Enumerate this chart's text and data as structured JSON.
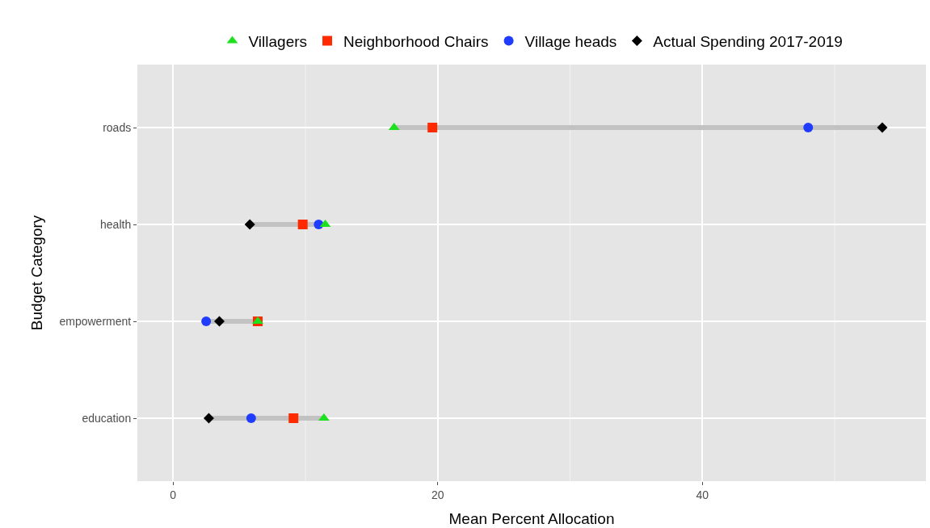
{
  "chart_data": {
    "type": "scatter",
    "xlabel": "Mean Percent Allocation",
    "ylabel": "Budget Category",
    "categories": [
      "roads",
      "health",
      "empowerment",
      "education"
    ],
    "orientation": "horizontal",
    "series": [
      {
        "name": "Villagers",
        "color": "#1fe01f",
        "marker": "triangle",
        "values": [
          16.7,
          11.5,
          6.4,
          11.4
        ]
      },
      {
        "name": "Neighborhood Chairs",
        "color": "#ff2a00",
        "marker": "square",
        "values": [
          19.6,
          9.8,
          6.4,
          9.1
        ]
      },
      {
        "name": "Village heads",
        "color": "#1f3cff",
        "marker": "circle",
        "values": [
          48.0,
          11.0,
          2.5,
          5.9
        ]
      },
      {
        "name": "Actual Spending 2017-2019",
        "color": "#000000",
        "marker": "diamond",
        "values": [
          53.6,
          5.8,
          3.5,
          2.7
        ]
      }
    ],
    "xlim": [
      -2.7,
      56.9
    ],
    "xticks": [
      0,
      {
        "value": 10,
        "label": null
      },
      20,
      {
        "value": 30,
        "label": null
      },
      40,
      {
        "value": 50,
        "label": null
      }
    ],
    "grid": true,
    "legend": "top"
  }
}
